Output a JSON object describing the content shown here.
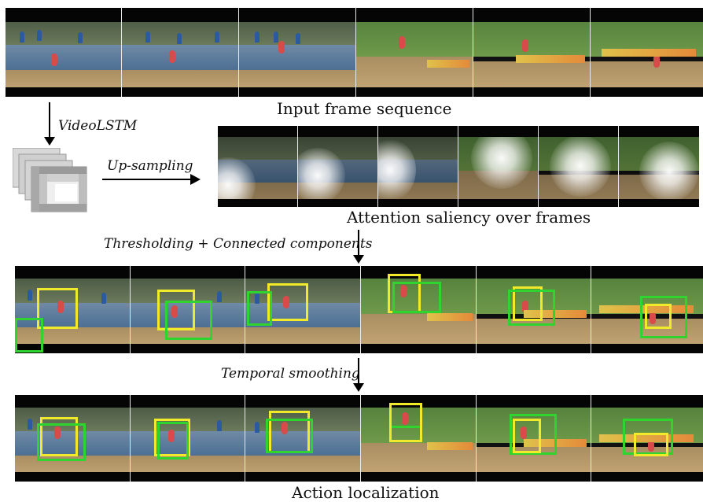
{
  "labels": {
    "input_caption": "Input frame sequence",
    "videolstm": "VideoLSTM",
    "upsampling": "Up-sampling",
    "attention_caption": "Attention saliency over frames",
    "thresholding": "Thresholding + Connected components",
    "temporal": "Temporal smoothing",
    "action_caption": "Action localization"
  },
  "colors": {
    "proposal_box": "#f1ea2a",
    "ground_truth_box": "#2fd42f"
  },
  "icons": {
    "feature_stack": "feature-map-stack-icon"
  }
}
